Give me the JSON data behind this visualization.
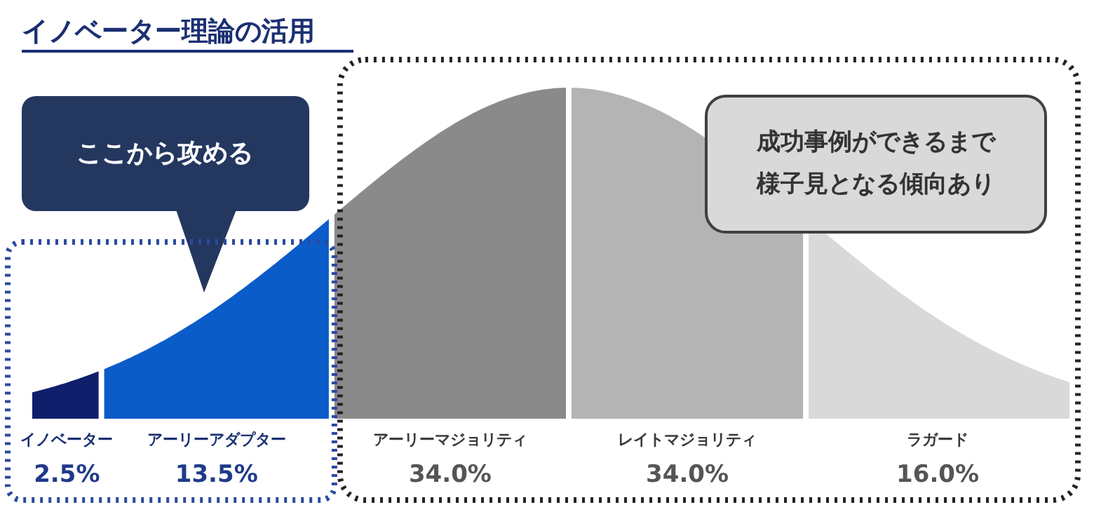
{
  "chart_data": {
    "type": "other",
    "title": "イノベーター理論の活用",
    "categories": [
      "イノベーター",
      "アーリーアダプター",
      "アーリーマジョリティ",
      "レイトマジョリティ",
      "ラガード"
    ],
    "values": [
      2.5,
      13.5,
      34.0,
      34.0,
      16.0
    ],
    "value_labels": [
      "2.5%",
      "13.5%",
      "34.0%",
      "34.0%",
      "16.0%"
    ],
    "colors": [
      "#0f1f6b",
      "#0a5cc8",
      "#8a8a8a",
      "#b4b4b4",
      "#d9d9d9"
    ],
    "annotations": [
      "ここから攻める",
      "成功事例ができるまで様子見となる傾向あり"
    ]
  }
}
